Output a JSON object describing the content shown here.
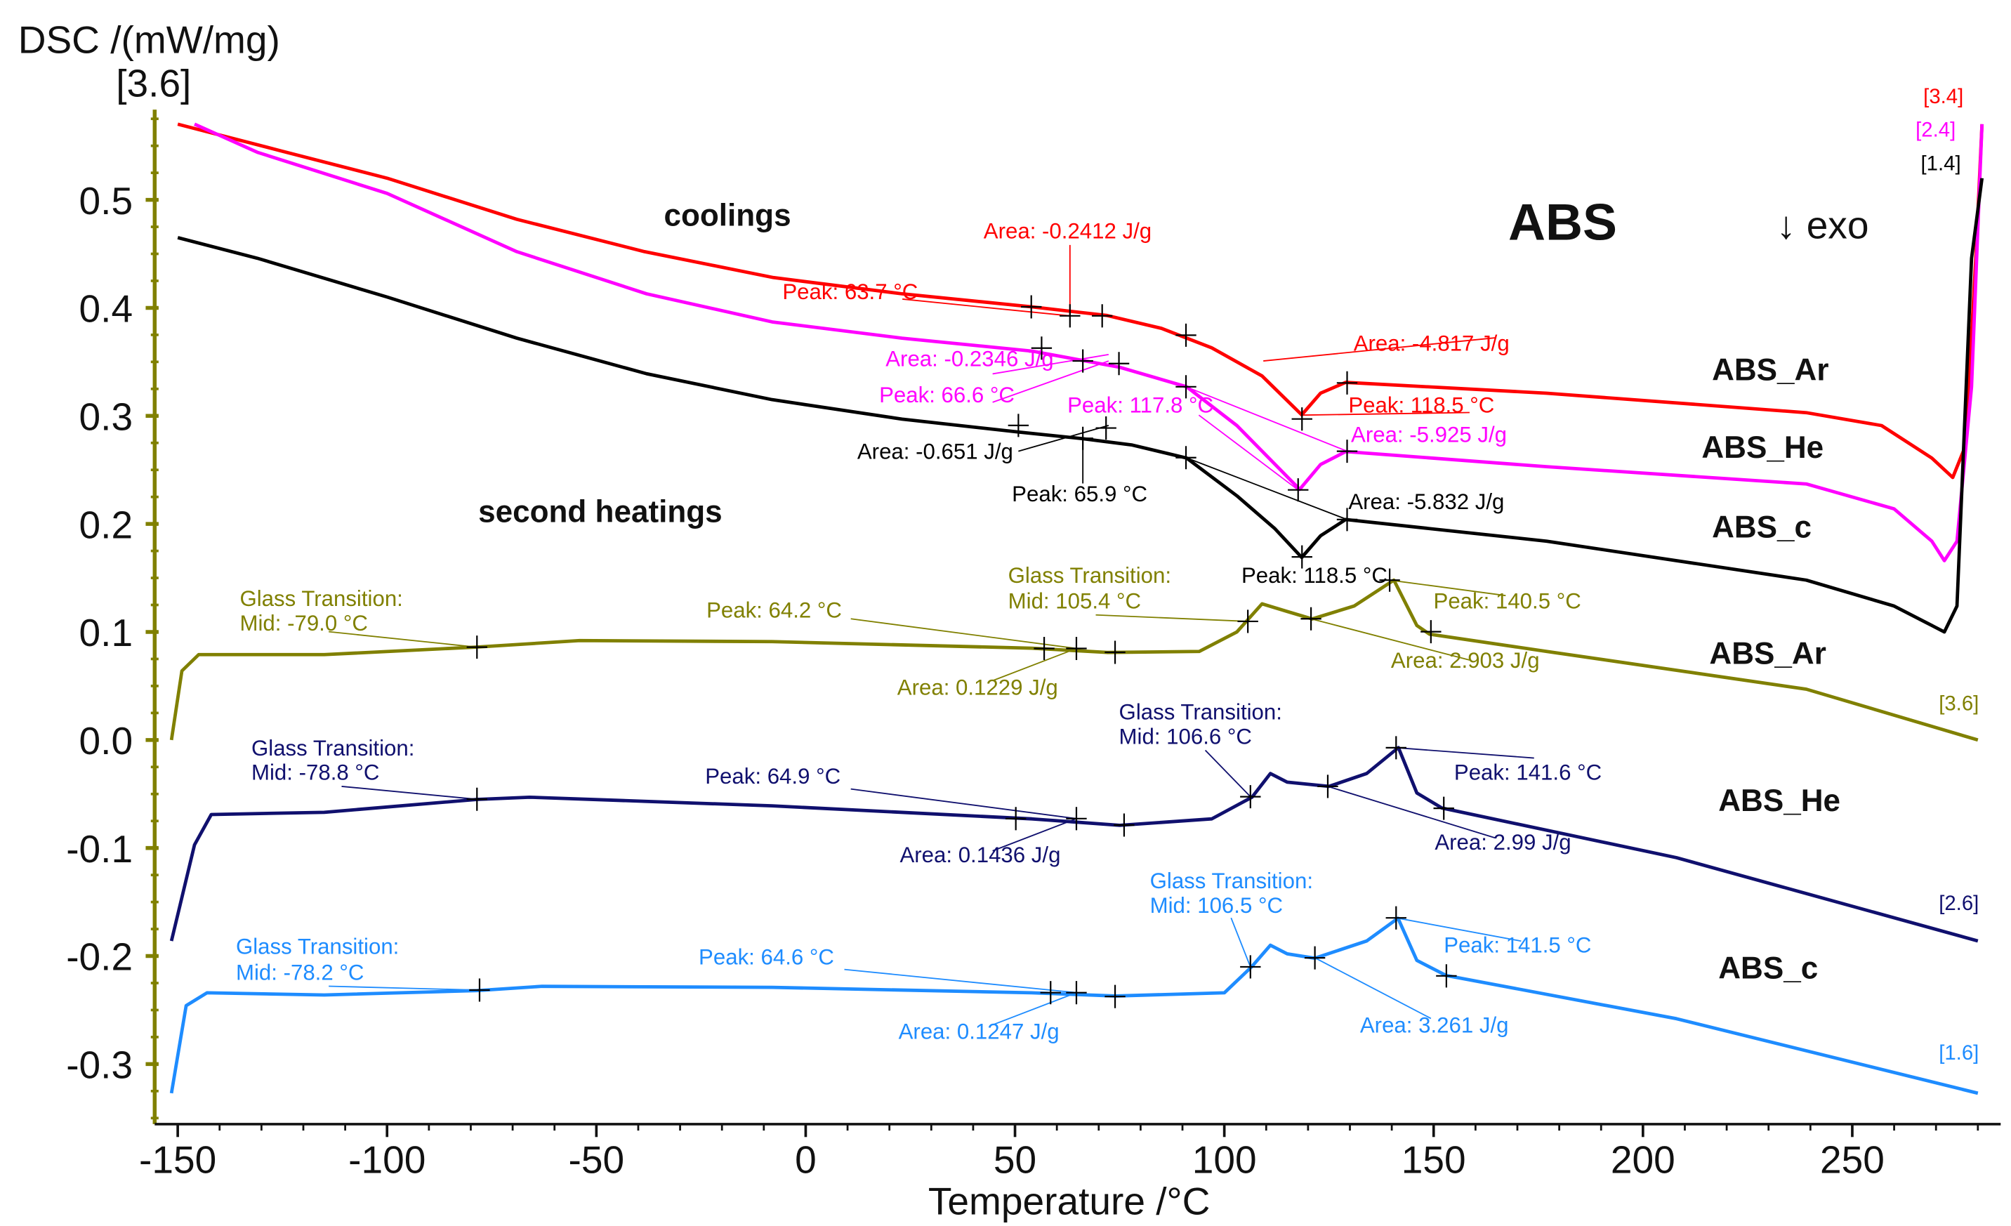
{
  "chart_data": {
    "type": "line",
    "title": "ABS",
    "xlabel": "Temperature /°C",
    "ylabel": "DSC /(mW/mg)",
    "y_scale_note": "[3.6]",
    "xlim": [
      -155,
      283
    ],
    "ylim": [
      -0.36,
      0.6
    ],
    "x_ticks": [
      -150,
      -100,
      -50,
      0,
      50,
      100,
      150,
      200,
      250
    ],
    "x_tick_labels": [
      "-150",
      "-100",
      "-50",
      "0",
      "50",
      "100",
      "150",
      "200",
      "250"
    ],
    "y_ticks": [
      0.5,
      0.4,
      0.3,
      0.2,
      0.1,
      0.0,
      -0.1,
      -0.2,
      -0.3
    ],
    "y_tick_labels": [
      "0.5",
      "0.4",
      "0.3",
      "0.2",
      "0.1",
      "0.0",
      "-0.1",
      "-0.2",
      "-0.3"
    ],
    "grid": false,
    "section_labels": {
      "coolings": "coolings",
      "heatings": "second heatings",
      "exo": "↓ exo"
    },
    "series": [
      {
        "name": "ABS_Ar",
        "group": "cooling",
        "color": "#ff0000",
        "scale": "[3.4]",
        "T": [
          -150,
          -125,
          -100,
          -69,
          -38.5,
          -7.7,
          23,
          54,
          72,
          85,
          97,
          109,
          118.5,
          123,
          129,
          177,
          239,
          257,
          269,
          274,
          277,
          279.5,
          281
        ],
        "DSC": [
          0.57,
          0.545,
          0.52,
          0.482,
          0.452,
          0.428,
          0.413,
          0.401,
          0.393,
          0.381,
          0.363,
          0.337,
          0.301,
          0.321,
          0.331,
          0.321,
          0.303,
          0.291,
          0.261,
          0.243,
          0.272,
          0.446,
          0.57
        ]
      },
      {
        "name": "ABS_He",
        "group": "cooling",
        "color": "#ff00ff",
        "scale": "[2.4]",
        "T": [
          -146,
          -131,
          -100,
          -69,
          -38,
          -8,
          23,
          54,
          75,
          91,
          103,
          118,
          123,
          129,
          177,
          239,
          260,
          269,
          272,
          275,
          278.5,
          281
        ],
        "DSC": [
          0.57,
          0.544,
          0.506,
          0.452,
          0.413,
          0.387,
          0.372,
          0.36,
          0.345,
          0.327,
          0.291,
          0.232,
          0.255,
          0.267,
          0.253,
          0.237,
          0.214,
          0.184,
          0.166,
          0.184,
          0.327,
          0.57
        ]
      },
      {
        "name": "ABS_c",
        "group": "cooling",
        "color": "#000000",
        "scale": "[1.4]",
        "T": [
          -150,
          -131,
          -100,
          -69,
          -38,
          -8,
          23,
          51,
          66,
          78,
          91,
          103,
          112,
          118.5,
          123,
          129,
          177,
          239,
          260,
          269,
          272,
          275,
          278.5,
          281
        ],
        "DSC": [
          0.465,
          0.446,
          0.41,
          0.372,
          0.339,
          0.315,
          0.297,
          0.285,
          0.279,
          0.273,
          0.261,
          0.226,
          0.196,
          0.169,
          0.189,
          0.204,
          0.184,
          0.148,
          0.124,
          0.106,
          0.1,
          0.124,
          0.446,
          0.52
        ]
      },
      {
        "name": "ABS_Ar",
        "group": "heating",
        "color": "#808000",
        "scale": "[3.6]",
        "T": [
          -151.5,
          -149,
          -145,
          -115,
          -78.5,
          -54,
          -8,
          54,
          72,
          94,
          103,
          109,
          115,
          121,
          131,
          140.5,
          146,
          149,
          177,
          239,
          280
        ],
        "DSC": [
          0.0,
          0.064,
          0.079,
          0.079,
          0.086,
          0.092,
          0.091,
          0.085,
          0.081,
          0.082,
          0.1,
          0.126,
          0.119,
          0.112,
          0.124,
          0.148,
          0.106,
          0.098,
          0.082,
          0.047,
          0.0
        ]
      },
      {
        "name": "ABS_He",
        "group": "heating",
        "color": "#10106e",
        "scale": "[2.6]",
        "T": [
          -151.5,
          -146,
          -142,
          -115,
          -78.5,
          -66,
          -8,
          54,
          75,
          97,
          106.6,
          111,
          115,
          125,
          134,
          141.6,
          146,
          152,
          208,
          280
        ],
        "DSC": [
          -0.186,
          -0.097,
          -0.069,
          -0.067,
          -0.055,
          -0.053,
          -0.061,
          -0.073,
          -0.079,
          -0.073,
          -0.053,
          -0.031,
          -0.039,
          -0.043,
          -0.031,
          -0.007,
          -0.049,
          -0.063,
          -0.109,
          -0.186
        ]
      },
      {
        "name": "ABS_c",
        "group": "heating",
        "color": "#1e8cff",
        "scale": "[1.6]",
        "T": [
          -151.5,
          -148,
          -143,
          -115,
          -78.5,
          -63,
          -8,
          54,
          74,
          100,
          106.5,
          111,
          115,
          121.6,
          134,
          141.5,
          146,
          153,
          208,
          280
        ],
        "DSC": [
          -0.327,
          -0.246,
          -0.234,
          -0.236,
          -0.232,
          -0.228,
          -0.229,
          -0.234,
          -0.237,
          -0.234,
          -0.21,
          -0.19,
          -0.198,
          -0.202,
          -0.186,
          -0.165,
          -0.204,
          -0.218,
          -0.258,
          -0.327
        ]
      }
    ],
    "annotations": [
      {
        "text": "Area: -0.2412 J/g",
        "color": "#ff0000"
      },
      {
        "text": "Peak: 63.7 °C",
        "color": "#ff0000"
      },
      {
        "text": "Area: -4.817 J/g",
        "color": "#ff0000"
      },
      {
        "text": "Peak: 118.5 °C",
        "color": "#ff0000"
      },
      {
        "text": "Area: -0.2346 J/g",
        "color": "#ff00ff"
      },
      {
        "text": "Peak: 66.6 °C",
        "color": "#ff00ff"
      },
      {
        "text": "Peak: 117.8 °C",
        "color": "#ff00ff"
      },
      {
        "text": "Area: -5.925 J/g",
        "color": "#ff00ff"
      },
      {
        "text": "Area: -0.651 J/g",
        "color": "#000000"
      },
      {
        "text": "Peak: 65.9 °C",
        "color": "#000000"
      },
      {
        "text": "Area: -5.832 J/g",
        "color": "#000000"
      },
      {
        "text": "Peak: 118.5 °C",
        "color": "#000000"
      },
      {
        "text": "Glass Transition:",
        "color": "#808000"
      },
      {
        "text": "Mid:  -79.0 °C",
        "color": "#808000"
      },
      {
        "text": "Peak: 64.2 °C",
        "color": "#808000"
      },
      {
        "text": "Glass Transition:",
        "color": "#808000"
      },
      {
        "text": "Mid:  105.4 °C",
        "color": "#808000"
      },
      {
        "text": "Peak: 140.5 °C",
        "color": "#808000"
      },
      {
        "text": "Area: 0.1229 J/g",
        "color": "#808000"
      },
      {
        "text": "Area: 2.903 J/g",
        "color": "#808000"
      },
      {
        "text": "Glass Transition:",
        "color": "#10106e"
      },
      {
        "text": "Mid:  -78.8 °C",
        "color": "#10106e"
      },
      {
        "text": "Peak: 64.9 °C",
        "color": "#10106e"
      },
      {
        "text": "Glass Transition:",
        "color": "#10106e"
      },
      {
        "text": "Mid:  106.6 °C",
        "color": "#10106e"
      },
      {
        "text": "Peak: 141.6 °C",
        "color": "#10106e"
      },
      {
        "text": "Area: 0.1436 J/g",
        "color": "#10106e"
      },
      {
        "text": "Area: 2.99 J/g",
        "color": "#10106e"
      },
      {
        "text": "Glass Transition:",
        "color": "#1e8cff"
      },
      {
        "text": "Mid:  -78.2 °C",
        "color": "#1e8cff"
      },
      {
        "text": "Peak: 64.6 °C",
        "color": "#1e8cff"
      },
      {
        "text": "Glass Transition:",
        "color": "#1e8cff"
      },
      {
        "text": "Mid:  106.5 °C",
        "color": "#1e8cff"
      },
      {
        "text": "Peak: 141.5 °C",
        "color": "#1e8cff"
      },
      {
        "text": "Area: 0.1247 J/g",
        "color": "#1e8cff"
      },
      {
        "text": "Area: 3.261 J/g",
        "color": "#1e8cff"
      }
    ]
  }
}
